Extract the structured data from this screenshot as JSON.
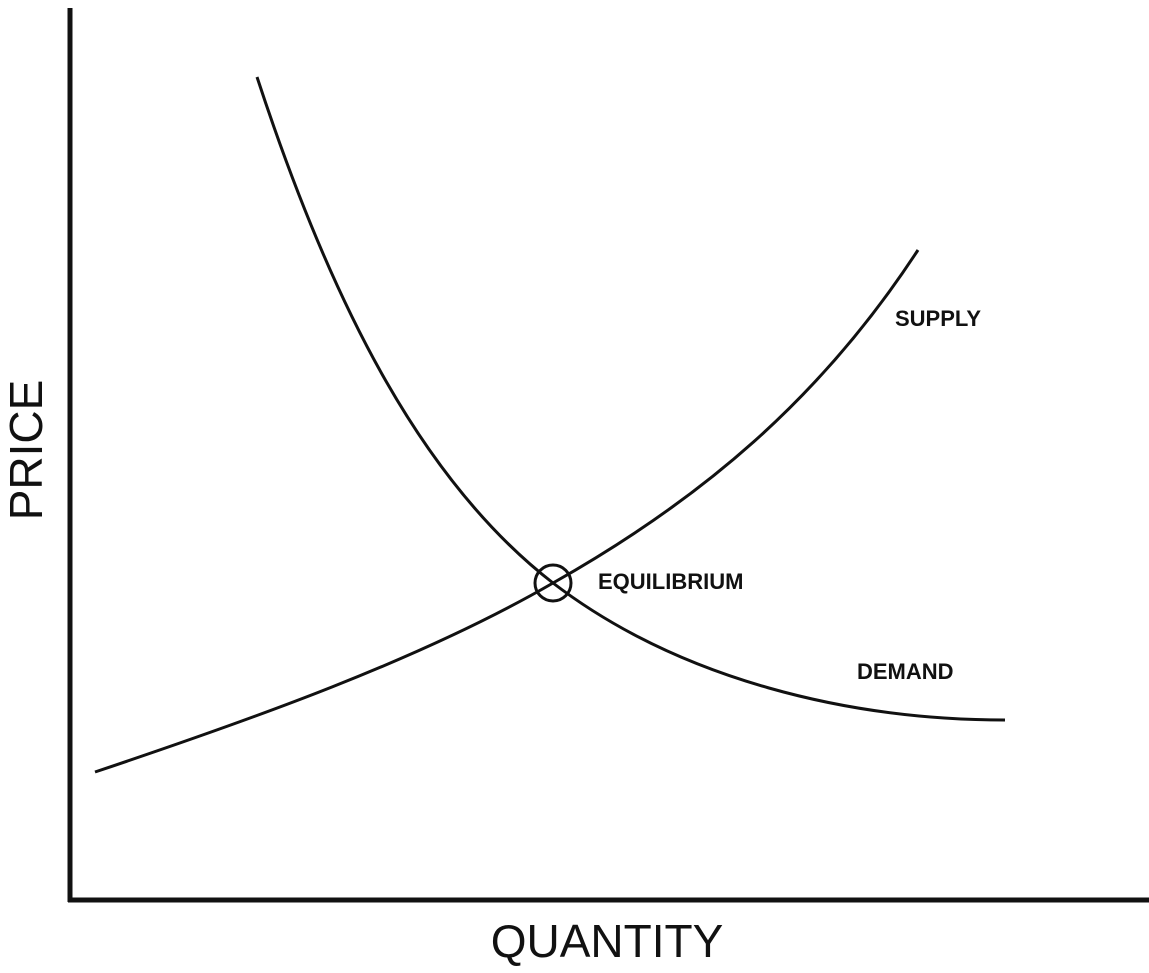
{
  "axes": {
    "y_label": "PRICE",
    "x_label": "QUANTITY"
  },
  "curves": {
    "supply": "SUPPLY",
    "demand": "DEMAND"
  },
  "point": {
    "label": "EQUILIBRIUM"
  }
}
